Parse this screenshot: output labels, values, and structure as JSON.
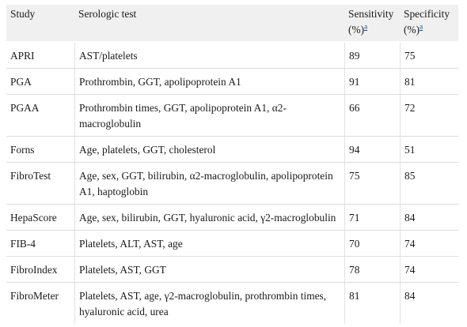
{
  "headers": {
    "study": "Study",
    "test": "Serologic test",
    "sensitivity_title": "Sensitivity",
    "sensitivity_unit": "(%)",
    "specificity_title": "Specificity",
    "specificity_unit": "(%)",
    "footnote_mark": "a"
  },
  "rows": [
    {
      "study": "APRI",
      "test": "AST/platelets",
      "sensitivity": "89",
      "specificity": "75"
    },
    {
      "study": "PGA",
      "test": "Prothrombin, GGT, apolipoprotein A1",
      "sensitivity": "91",
      "specificity": "81"
    },
    {
      "study": "PGAA",
      "test": "Prothrombin times, GGT, apolipoprotein A1, α2-macroglobulin",
      "sensitivity": "66",
      "specificity": "72"
    },
    {
      "study": "Forns",
      "test": "Age, platelets, GGT, cholesterol",
      "sensitivity": "94",
      "specificity": "51"
    },
    {
      "study": "FibroTest",
      "test": "Age, sex, GGT, bilirubin, α2-macroglobulin, apolipoprotein A1, haptoglobin",
      "sensitivity": "75",
      "specificity": "85"
    },
    {
      "study": "HepaScore",
      "test": "Age, sex, bilirubin, GGT, hyaluronic acid, γ2-macroglobulin",
      "sensitivity": "71",
      "specificity": "84"
    },
    {
      "study": "FIB-4",
      "test": "Platelets, ALT, AST, age",
      "sensitivity": "70",
      "specificity": "74"
    },
    {
      "study": "FibroIndex",
      "test": "Platelets, AST, GGT",
      "sensitivity": "78",
      "specificity": "74"
    },
    {
      "study": "FibroMeter",
      "test": "Platelets, AST, age, γ2-macroglobulin, prothrombin times, hyaluronic acid, urea",
      "sensitivity": "81",
      "specificity": "84"
    }
  ]
}
